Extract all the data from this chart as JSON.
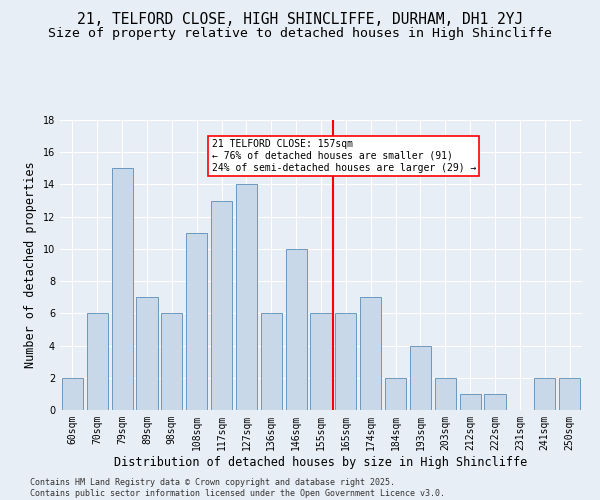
{
  "title1": "21, TELFORD CLOSE, HIGH SHINCLIFFE, DURHAM, DH1 2YJ",
  "title2": "Size of property relative to detached houses in High Shincliffe",
  "xlabel": "Distribution of detached houses by size in High Shincliffe",
  "ylabel": "Number of detached properties",
  "categories": [
    "60sqm",
    "70sqm",
    "79sqm",
    "89sqm",
    "98sqm",
    "108sqm",
    "117sqm",
    "127sqm",
    "136sqm",
    "146sqm",
    "155sqm",
    "165sqm",
    "174sqm",
    "184sqm",
    "193sqm",
    "203sqm",
    "212sqm",
    "222sqm",
    "231sqm",
    "241sqm",
    "250sqm"
  ],
  "values": [
    2,
    6,
    15,
    7,
    6,
    11,
    13,
    14,
    6,
    10,
    6,
    6,
    7,
    2,
    4,
    2,
    1,
    1,
    0,
    2,
    2
  ],
  "bar_color": "#c8d8e8",
  "bar_edge_color": "#5b8db8",
  "vline_pos": 10,
  "vline_color": "red",
  "annotation_text": "21 TELFORD CLOSE: 157sqm\n← 76% of detached houses are smaller (91)\n24% of semi-detached houses are larger (29) →",
  "annotation_box_color": "white",
  "annotation_box_edge": "red",
  "ylim": [
    0,
    18
  ],
  "yticks": [
    0,
    2,
    4,
    6,
    8,
    10,
    12,
    14,
    16,
    18
  ],
  "background_color": "#e8eef6",
  "footer_text": "Contains HM Land Registry data © Crown copyright and database right 2025.\nContains public sector information licensed under the Open Government Licence v3.0.",
  "title1_fontsize": 10.5,
  "title2_fontsize": 9.5,
  "xlabel_fontsize": 8.5,
  "ylabel_fontsize": 8.5,
  "tick_fontsize": 7,
  "footer_fontsize": 6,
  "annotation_fontsize": 7
}
